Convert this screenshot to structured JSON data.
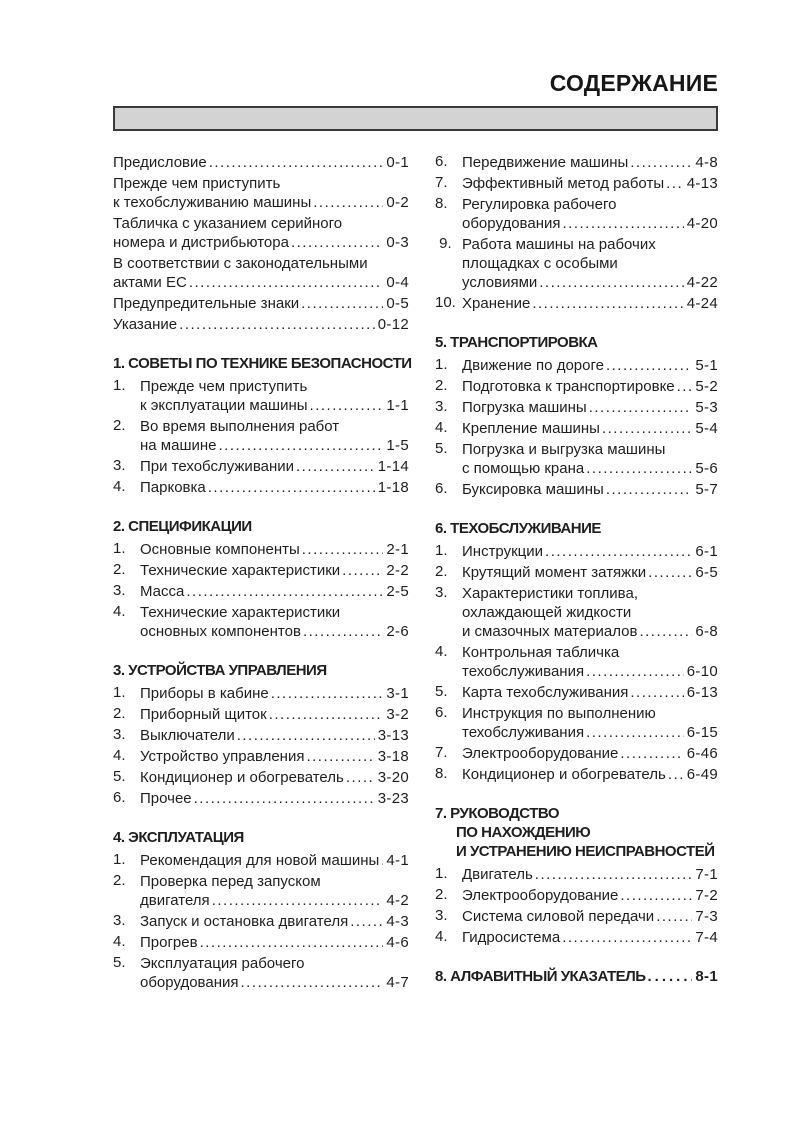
{
  "title": "СОДЕРЖАНИЕ",
  "colors": {
    "bar-fill": "#d3d3d3",
    "bar-border": "#3a3a3a"
  },
  "left_column": {
    "sections": [
      {
        "heading_lines": null,
        "items": [
          {
            "num": null,
            "lines": [
              "Предисловие"
            ],
            "page": "0-1"
          },
          {
            "num": null,
            "lines": [
              "Прежде чем приступить",
              "к техобслуживанию машины"
            ],
            "page": "0-2"
          },
          {
            "num": null,
            "lines": [
              "Табличка с указанием серийного",
              "номера и дистрибьютора"
            ],
            "page": "0-3"
          },
          {
            "num": null,
            "lines": [
              "В соответствии с законодательными",
              "актами ЕС"
            ],
            "page": "0-4"
          },
          {
            "num": null,
            "lines": [
              "Предупредительные знаки"
            ],
            "page": "0-5"
          },
          {
            "num": null,
            "lines": [
              "Указание"
            ],
            "page": "0-12"
          }
        ]
      },
      {
        "heading_lines": [
          "1. СОВЕТЫ ПО ТЕХНИКЕ БЕЗОПАСНОСТИ"
        ],
        "items": [
          {
            "num": "1.",
            "lines": [
              "Прежде чем приступить",
              "к эксплуатации машины"
            ],
            "page": "1-1"
          },
          {
            "num": "2.",
            "lines": [
              "Во время выполнения работ",
              "на машине"
            ],
            "page": "1-5"
          },
          {
            "num": "3.",
            "lines": [
              "При техобслуживании"
            ],
            "page": "1-14"
          },
          {
            "num": "4.",
            "lines": [
              "Парковка"
            ],
            "page": "1-18"
          }
        ]
      },
      {
        "heading_lines": [
          "2. СПЕЦИФИКАЦИИ"
        ],
        "items": [
          {
            "num": "1.",
            "lines": [
              "Основные компоненты"
            ],
            "page": "2-1"
          },
          {
            "num": "2.",
            "lines": [
              "Технические характеристики"
            ],
            "page": "2-2"
          },
          {
            "num": "3.",
            "lines": [
              "Масса"
            ],
            "page": "2-5"
          },
          {
            "num": "4.",
            "lines": [
              "Технические характеристики",
              "основных компонентов"
            ],
            "page": "2-6"
          }
        ]
      },
      {
        "heading_lines": [
          "3. УСТРОЙСТВА УПРАВЛЕНИЯ"
        ],
        "items": [
          {
            "num": "1.",
            "lines": [
              "Приборы в кабине"
            ],
            "page": "3-1"
          },
          {
            "num": "2.",
            "lines": [
              "Приборный щиток"
            ],
            "page": "3-2"
          },
          {
            "num": "3.",
            "lines": [
              "Выключатели"
            ],
            "page": "3-13"
          },
          {
            "num": "4.",
            "lines": [
              "Устройство управления"
            ],
            "page": "3-18"
          },
          {
            "num": "5.",
            "lines": [
              "Кондиционер и обогреватель"
            ],
            "page": "3-20"
          },
          {
            "num": "6.",
            "lines": [
              "Прочее"
            ],
            "page": "3-23"
          }
        ]
      },
      {
        "heading_lines": [
          "4. ЭКСПЛУАТАЦИЯ"
        ],
        "items": [
          {
            "num": "1.",
            "lines": [
              "Рекомендация для новой машины"
            ],
            "page": "4-1"
          },
          {
            "num": "2.",
            "lines": [
              "Проверка перед запуском",
              "двигателя"
            ],
            "page": "4-2"
          },
          {
            "num": "3.",
            "lines": [
              "Запуск и остановка двигателя"
            ],
            "page": "4-3"
          },
          {
            "num": "4.",
            "lines": [
              "Прогрев"
            ],
            "page": "4-6"
          },
          {
            "num": "5.",
            "lines": [
              "Эксплуатация рабочего",
              "оборудования"
            ],
            "page": "4-7"
          }
        ]
      }
    ]
  },
  "right_column": {
    "sections": [
      {
        "heading_lines": null,
        "items": [
          {
            "num": "6.",
            "lines": [
              "Передвижение машины"
            ],
            "page": "4-8"
          },
          {
            "num": "7.",
            "lines": [
              "Эффективный метод работы"
            ],
            "page": "4-13"
          },
          {
            "num": "8.",
            "lines": [
              "Регулировка рабочего",
              "оборудования"
            ],
            "page": "4-20"
          },
          {
            "num": " 9.",
            "lines": [
              "Работа машины на рабочих",
              "площадках с особыми",
              "условиями"
            ],
            "page": "4-22"
          },
          {
            "num": "10.",
            "lines": [
              "Хранение"
            ],
            "page": "4-24"
          }
        ]
      },
      {
        "heading_lines": [
          "5. ТРАНСПОРТИРОВКА"
        ],
        "items": [
          {
            "num": "1.",
            "lines": [
              "Движение по дороге"
            ],
            "page": "5-1"
          },
          {
            "num": "2.",
            "lines": [
              "Подготовка к транспортировке"
            ],
            "page": "5-2"
          },
          {
            "num": "3.",
            "lines": [
              "Погрузка машины"
            ],
            "page": "5-3"
          },
          {
            "num": "4.",
            "lines": [
              "Крепление машины"
            ],
            "page": "5-4"
          },
          {
            "num": "5.",
            "lines": [
              "Погрузка и выгрузка машины",
              "с помощью крана"
            ],
            "page": "5-6"
          },
          {
            "num": "6.",
            "lines": [
              "Буксировка машины"
            ],
            "page": "5-7"
          }
        ]
      },
      {
        "heading_lines": [
          "6. ТЕХОБСЛУЖИВАНИЕ"
        ],
        "items": [
          {
            "num": "1.",
            "lines": [
              "Инструкции"
            ],
            "page": "6-1"
          },
          {
            "num": "2.",
            "lines": [
              "Крутящий момент затяжки"
            ],
            "page": "6-5"
          },
          {
            "num": "3.",
            "lines": [
              "Характеристики топлива,",
              "охлаждающей жидкости",
              "и смазочных материалов"
            ],
            "page": "6-8"
          },
          {
            "num": "4.",
            "lines": [
              "Контрольная табличка",
              "техобслуживания"
            ],
            "page": "6-10"
          },
          {
            "num": "5.",
            "lines": [
              "Карта техобслуживания"
            ],
            "page": "6-13"
          },
          {
            "num": "6.",
            "lines": [
              "Инструкция по выполнению",
              "техобслуживания"
            ],
            "page": "6-15"
          },
          {
            "num": "7.",
            "lines": [
              "Электрооборудование"
            ],
            "page": "6-46"
          },
          {
            "num": "8.",
            "lines": [
              "Кондиционер и обогреватель"
            ],
            "page": "6-49"
          }
        ]
      },
      {
        "heading_lines": [
          "7. РУКОВОДСТВО",
          "ПО НАХОЖДЕНИЮ",
          "И УСТРАНЕНИЮ НЕИСПРАВНОСТЕЙ"
        ],
        "items": [
          {
            "num": "1.",
            "lines": [
              "Двигатель"
            ],
            "page": "7-1"
          },
          {
            "num": "2.",
            "lines": [
              "Электрооборудование"
            ],
            "page": "7-2"
          },
          {
            "num": "3.",
            "lines": [
              "Система силовой передачи"
            ],
            "page": "7-3"
          },
          {
            "num": "4.",
            "lines": [
              "Гидросистема"
            ],
            "page": "7-4"
          }
        ]
      },
      {
        "heading_lines": [
          "8. АЛФАВИТНЫЙ УКАЗАТЕЛЬ"
        ],
        "page": "8-1",
        "items": []
      }
    ]
  }
}
